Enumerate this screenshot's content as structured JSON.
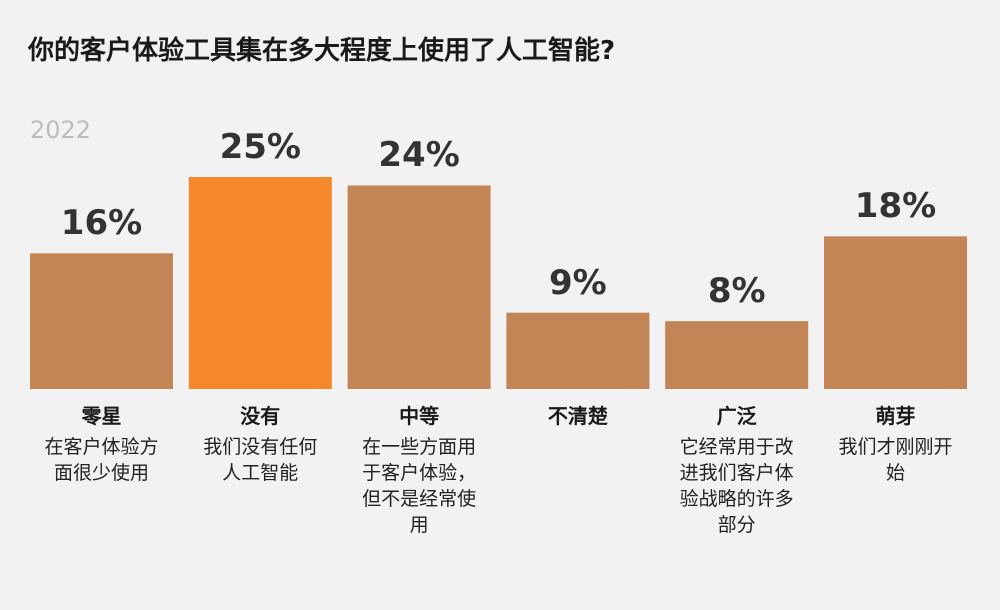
{
  "chart_data": {
    "type": "bar",
    "title": "你的客户体验工具集在多大程度上使用了人工智能?",
    "subtitle": "2022",
    "categories": [
      "零星",
      "没有",
      "中等",
      "不清楚",
      "广泛",
      "萌芽"
    ],
    "descriptions": [
      "在客户体验方面很少使用",
      "我们没有任何人工智能",
      "在一些方面用于客户体验，但不是经常使用",
      null,
      "它经常用于改进我们客户体验战略的许多部分",
      "我们才刚刚开始"
    ],
    "values": [
      16,
      25,
      24,
      9,
      8,
      18
    ],
    "value_labels": [
      "16%",
      "25%",
      "24%",
      "9%",
      "8%",
      "18%"
    ],
    "color": "#c38456",
    "highlight_color": "#f5882a",
    "highlight_index": 1
  }
}
